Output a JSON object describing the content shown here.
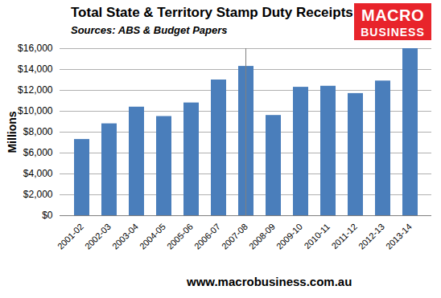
{
  "chart_data": {
    "type": "bar",
    "title": "Total State & Territory Stamp Duty Receipts",
    "subtitle": "Sources: ABS & Budget Papers",
    "logo": [
      "MACRO",
      "BUSINESS"
    ],
    "footer": "www.macrobusiness.com.au",
    "y_label": "Millions",
    "categories": [
      "2001-02",
      "2002-03",
      "2003-04",
      "2004-05",
      "2005-06",
      "2006-07",
      "2007-08",
      "2008-09",
      "2009-10",
      "2010-11",
      "2011-12",
      "2012-13",
      "2013-14"
    ],
    "values": [
      7300,
      8800,
      10400,
      9500,
      10800,
      13000,
      14300,
      9600,
      12300,
      12400,
      11700,
      12900,
      16000
    ],
    "color": "#4a7ebb",
    "ylim": [
      0,
      16000
    ],
    "yticks": [
      {
        "value": 0,
        "label": "$0"
      },
      {
        "value": 2000,
        "label": "$2,000"
      },
      {
        "value": 4000,
        "label": "$4,000"
      },
      {
        "value": 6000,
        "label": "$6,000"
      },
      {
        "value": 8000,
        "label": "$8,000"
      },
      {
        "value": 10000,
        "label": "$10,000"
      },
      {
        "value": 12000,
        "label": "$12,000"
      },
      {
        "value": 14000,
        "label": "$14,000"
      },
      {
        "value": 16000,
        "label": "$16,000"
      }
    ],
    "grid": true
  }
}
